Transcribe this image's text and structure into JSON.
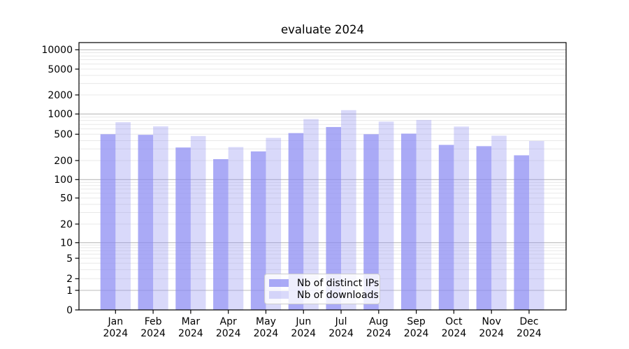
{
  "chart_data": {
    "type": "bar",
    "title": "evaluate 2024",
    "categories": [
      "Jan 2024",
      "Feb 2024",
      "Mar 2024",
      "Apr 2024",
      "May 2024",
      "Jun 2024",
      "Jul 2024",
      "Aug 2024",
      "Sep 2024",
      "Oct 2024",
      "Nov 2024",
      "Dec 2024"
    ],
    "series": [
      {
        "name": "Nb of distinct IPs",
        "color": "#aaaaf6",
        "fill_rgba": "rgba(137,137,242,0.72)",
        "values": [
          500,
          490,
          315,
          210,
          275,
          520,
          640,
          500,
          510,
          345,
          330,
          240
        ]
      },
      {
        "name": "Nb of downloads",
        "color": "#d9d9fa",
        "fill_rgba": "rgba(150,150,241,0.36)",
        "values": [
          755,
          655,
          470,
          320,
          440,
          840,
          1150,
          770,
          815,
          650,
          475,
          395
        ]
      }
    ],
    "xlabel": "",
    "ylabel": "",
    "y_axis": {
      "scale": "symlog",
      "ticks": [
        0,
        1,
        2,
        5,
        10,
        20,
        50,
        100,
        200,
        500,
        1000,
        2000,
        5000,
        10000
      ],
      "ylim": [
        0,
        13000
      ]
    },
    "grid": "on",
    "major_grid_color": "#bbbbbb",
    "minor_grid_color": "#e8e8e8",
    "legend_position": "lower center"
  }
}
